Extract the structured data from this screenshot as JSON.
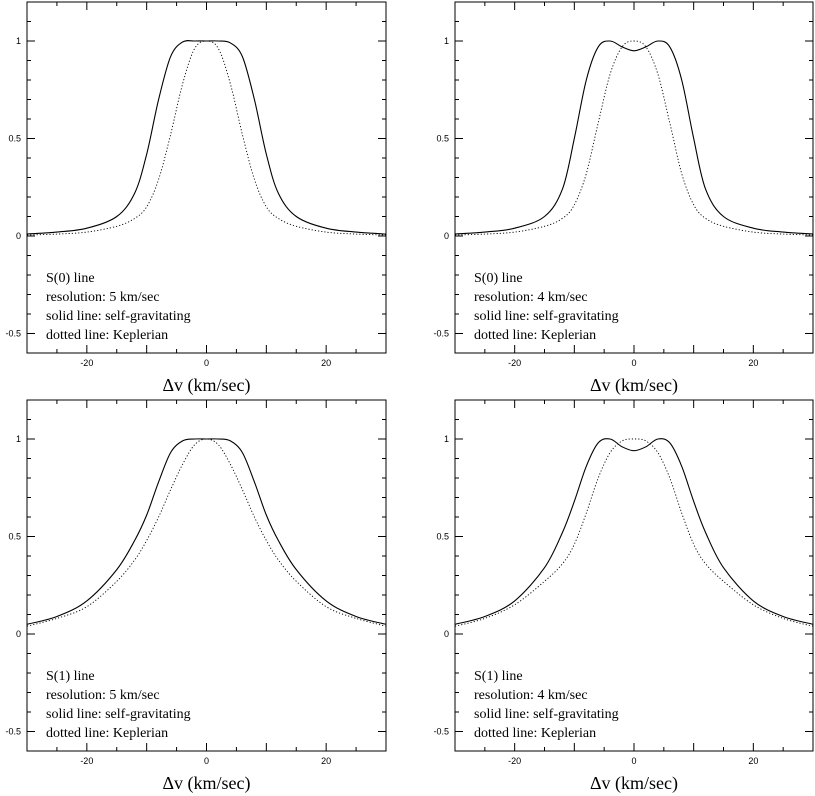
{
  "chart_data": [
    {
      "type": "line",
      "xlabel": "Δv (km/sec)",
      "xlim": [
        -30,
        30
      ],
      "ylim": [
        -0.6,
        1.2
      ],
      "xticks": [
        -20,
        0,
        20
      ],
      "yticks": [
        -0.5,
        0,
        0.5,
        1
      ],
      "annotations": [
        "S(0) line",
        "resolution: 5 km/sec",
        "solid line: self-gravitating",
        "dotted line: Keplerian"
      ],
      "series": [
        {
          "style": "solid",
          "x": [
            -30,
            -25,
            -20,
            -15,
            -12,
            -10,
            -8,
            -6,
            -4,
            -2,
            0,
            2,
            4,
            6,
            8,
            10,
            12,
            15,
            20,
            25,
            30
          ],
          "y": [
            0.01,
            0.02,
            0.04,
            0.1,
            0.22,
            0.42,
            0.7,
            0.92,
            0.995,
            1.0,
            1.0,
            1.0,
            0.99,
            0.92,
            0.7,
            0.42,
            0.22,
            0.1,
            0.04,
            0.02,
            0.01
          ]
        },
        {
          "style": "dotted",
          "x": [
            -30,
            -25,
            -20,
            -15,
            -12,
            -10,
            -8,
            -6,
            -4,
            -2,
            0,
            2,
            4,
            6,
            8,
            10,
            12,
            15,
            20,
            25,
            30
          ],
          "y": [
            0.005,
            0.01,
            0.02,
            0.05,
            0.09,
            0.15,
            0.29,
            0.52,
            0.78,
            0.96,
            1.0,
            0.96,
            0.78,
            0.52,
            0.29,
            0.15,
            0.09,
            0.05,
            0.02,
            0.01,
            0.005
          ]
        }
      ]
    },
    {
      "type": "line",
      "xlabel": "Δv (km/sec)",
      "xlim": [
        -30,
        30
      ],
      "ylim": [
        -0.6,
        1.2
      ],
      "xticks": [
        -20,
        0,
        20
      ],
      "yticks": [
        -0.5,
        0,
        0.5,
        1
      ],
      "annotations": [
        "S(0) line",
        "resolution: 4 km/sec",
        "solid line: self-gravitating",
        "dotted line: Keplerian"
      ],
      "series": [
        {
          "style": "solid",
          "x": [
            -30,
            -25,
            -20,
            -15,
            -12,
            -10,
            -8,
            -6,
            -4,
            -2,
            0,
            2,
            4,
            6,
            8,
            10,
            12,
            15,
            20,
            25,
            30
          ],
          "y": [
            0.01,
            0.02,
            0.04,
            0.1,
            0.24,
            0.5,
            0.8,
            0.97,
            1.0,
            0.97,
            0.95,
            0.97,
            1.0,
            0.97,
            0.8,
            0.5,
            0.24,
            0.1,
            0.04,
            0.02,
            0.01
          ]
        },
        {
          "style": "dotted",
          "x": [
            -30,
            -25,
            -20,
            -15,
            -12,
            -10,
            -8,
            -6,
            -4,
            -2,
            0,
            2,
            4,
            6,
            8,
            10,
            12,
            15,
            20,
            25,
            30
          ],
          "y": [
            0.005,
            0.01,
            0.02,
            0.05,
            0.09,
            0.16,
            0.32,
            0.58,
            0.83,
            0.97,
            1.0,
            0.97,
            0.83,
            0.58,
            0.32,
            0.16,
            0.09,
            0.05,
            0.02,
            0.01,
            0.005
          ]
        }
      ]
    },
    {
      "type": "line",
      "xlabel": "Δv (km/sec)",
      "xlim": [
        -30,
        30
      ],
      "ylim": [
        -0.6,
        1.2
      ],
      "xticks": [
        -20,
        0,
        20
      ],
      "yticks": [
        -0.5,
        0,
        0.5,
        1
      ],
      "annotations": [
        "S(1) line",
        "resolution: 5 km/sec",
        "solid line: self-gravitating",
        "dotted line: Keplerian"
      ],
      "series": [
        {
          "style": "solid",
          "x": [
            -30,
            -25,
            -20,
            -15,
            -12,
            -10,
            -8,
            -6,
            -4,
            -2,
            0,
            2,
            4,
            6,
            8,
            10,
            12,
            15,
            20,
            25,
            30
          ],
          "y": [
            0.05,
            0.09,
            0.17,
            0.33,
            0.48,
            0.61,
            0.78,
            0.93,
            0.99,
            1.0,
            1.0,
            1.0,
            0.99,
            0.93,
            0.78,
            0.61,
            0.48,
            0.33,
            0.17,
            0.09,
            0.05
          ]
        },
        {
          "style": "dotted",
          "x": [
            -30,
            -25,
            -20,
            -15,
            -12,
            -10,
            -8,
            -6,
            -4,
            -2,
            0,
            2,
            4,
            6,
            8,
            10,
            12,
            15,
            20,
            25,
            30
          ],
          "y": [
            0.04,
            0.08,
            0.14,
            0.27,
            0.38,
            0.48,
            0.6,
            0.74,
            0.87,
            0.97,
            1.0,
            0.97,
            0.87,
            0.74,
            0.6,
            0.48,
            0.38,
            0.27,
            0.14,
            0.08,
            0.04
          ]
        }
      ]
    },
    {
      "type": "line",
      "xlabel": "Δv (km/sec)",
      "xlim": [
        -30,
        30
      ],
      "ylim": [
        -0.6,
        1.2
      ],
      "xticks": [
        -20,
        0,
        20
      ],
      "yticks": [
        -0.5,
        0,
        0.5,
        1
      ],
      "annotations": [
        "S(1) line",
        "resolution: 4 km/sec",
        "solid line: self-gravitating",
        "dotted line: Keplerian"
      ],
      "series": [
        {
          "style": "solid",
          "x": [
            -30,
            -25,
            -20,
            -15,
            -12,
            -10,
            -8,
            -6,
            -4,
            -2,
            0,
            2,
            4,
            6,
            8,
            10,
            12,
            15,
            20,
            25,
            30
          ],
          "y": [
            0.05,
            0.09,
            0.17,
            0.34,
            0.52,
            0.68,
            0.86,
            0.98,
            1.0,
            0.96,
            0.94,
            0.96,
            1.0,
            0.98,
            0.86,
            0.68,
            0.52,
            0.34,
            0.17,
            0.09,
            0.05
          ]
        },
        {
          "style": "dotted",
          "x": [
            -30,
            -25,
            -20,
            -15,
            -12,
            -10,
            -8,
            -6,
            -4,
            -2,
            0,
            2,
            4,
            6,
            8,
            10,
            12,
            15,
            20,
            25,
            30
          ],
          "y": [
            0.04,
            0.08,
            0.15,
            0.27,
            0.36,
            0.46,
            0.62,
            0.8,
            0.93,
            0.99,
            1.0,
            0.99,
            0.93,
            0.8,
            0.62,
            0.46,
            0.36,
            0.27,
            0.15,
            0.08,
            0.04
          ]
        }
      ]
    }
  ]
}
